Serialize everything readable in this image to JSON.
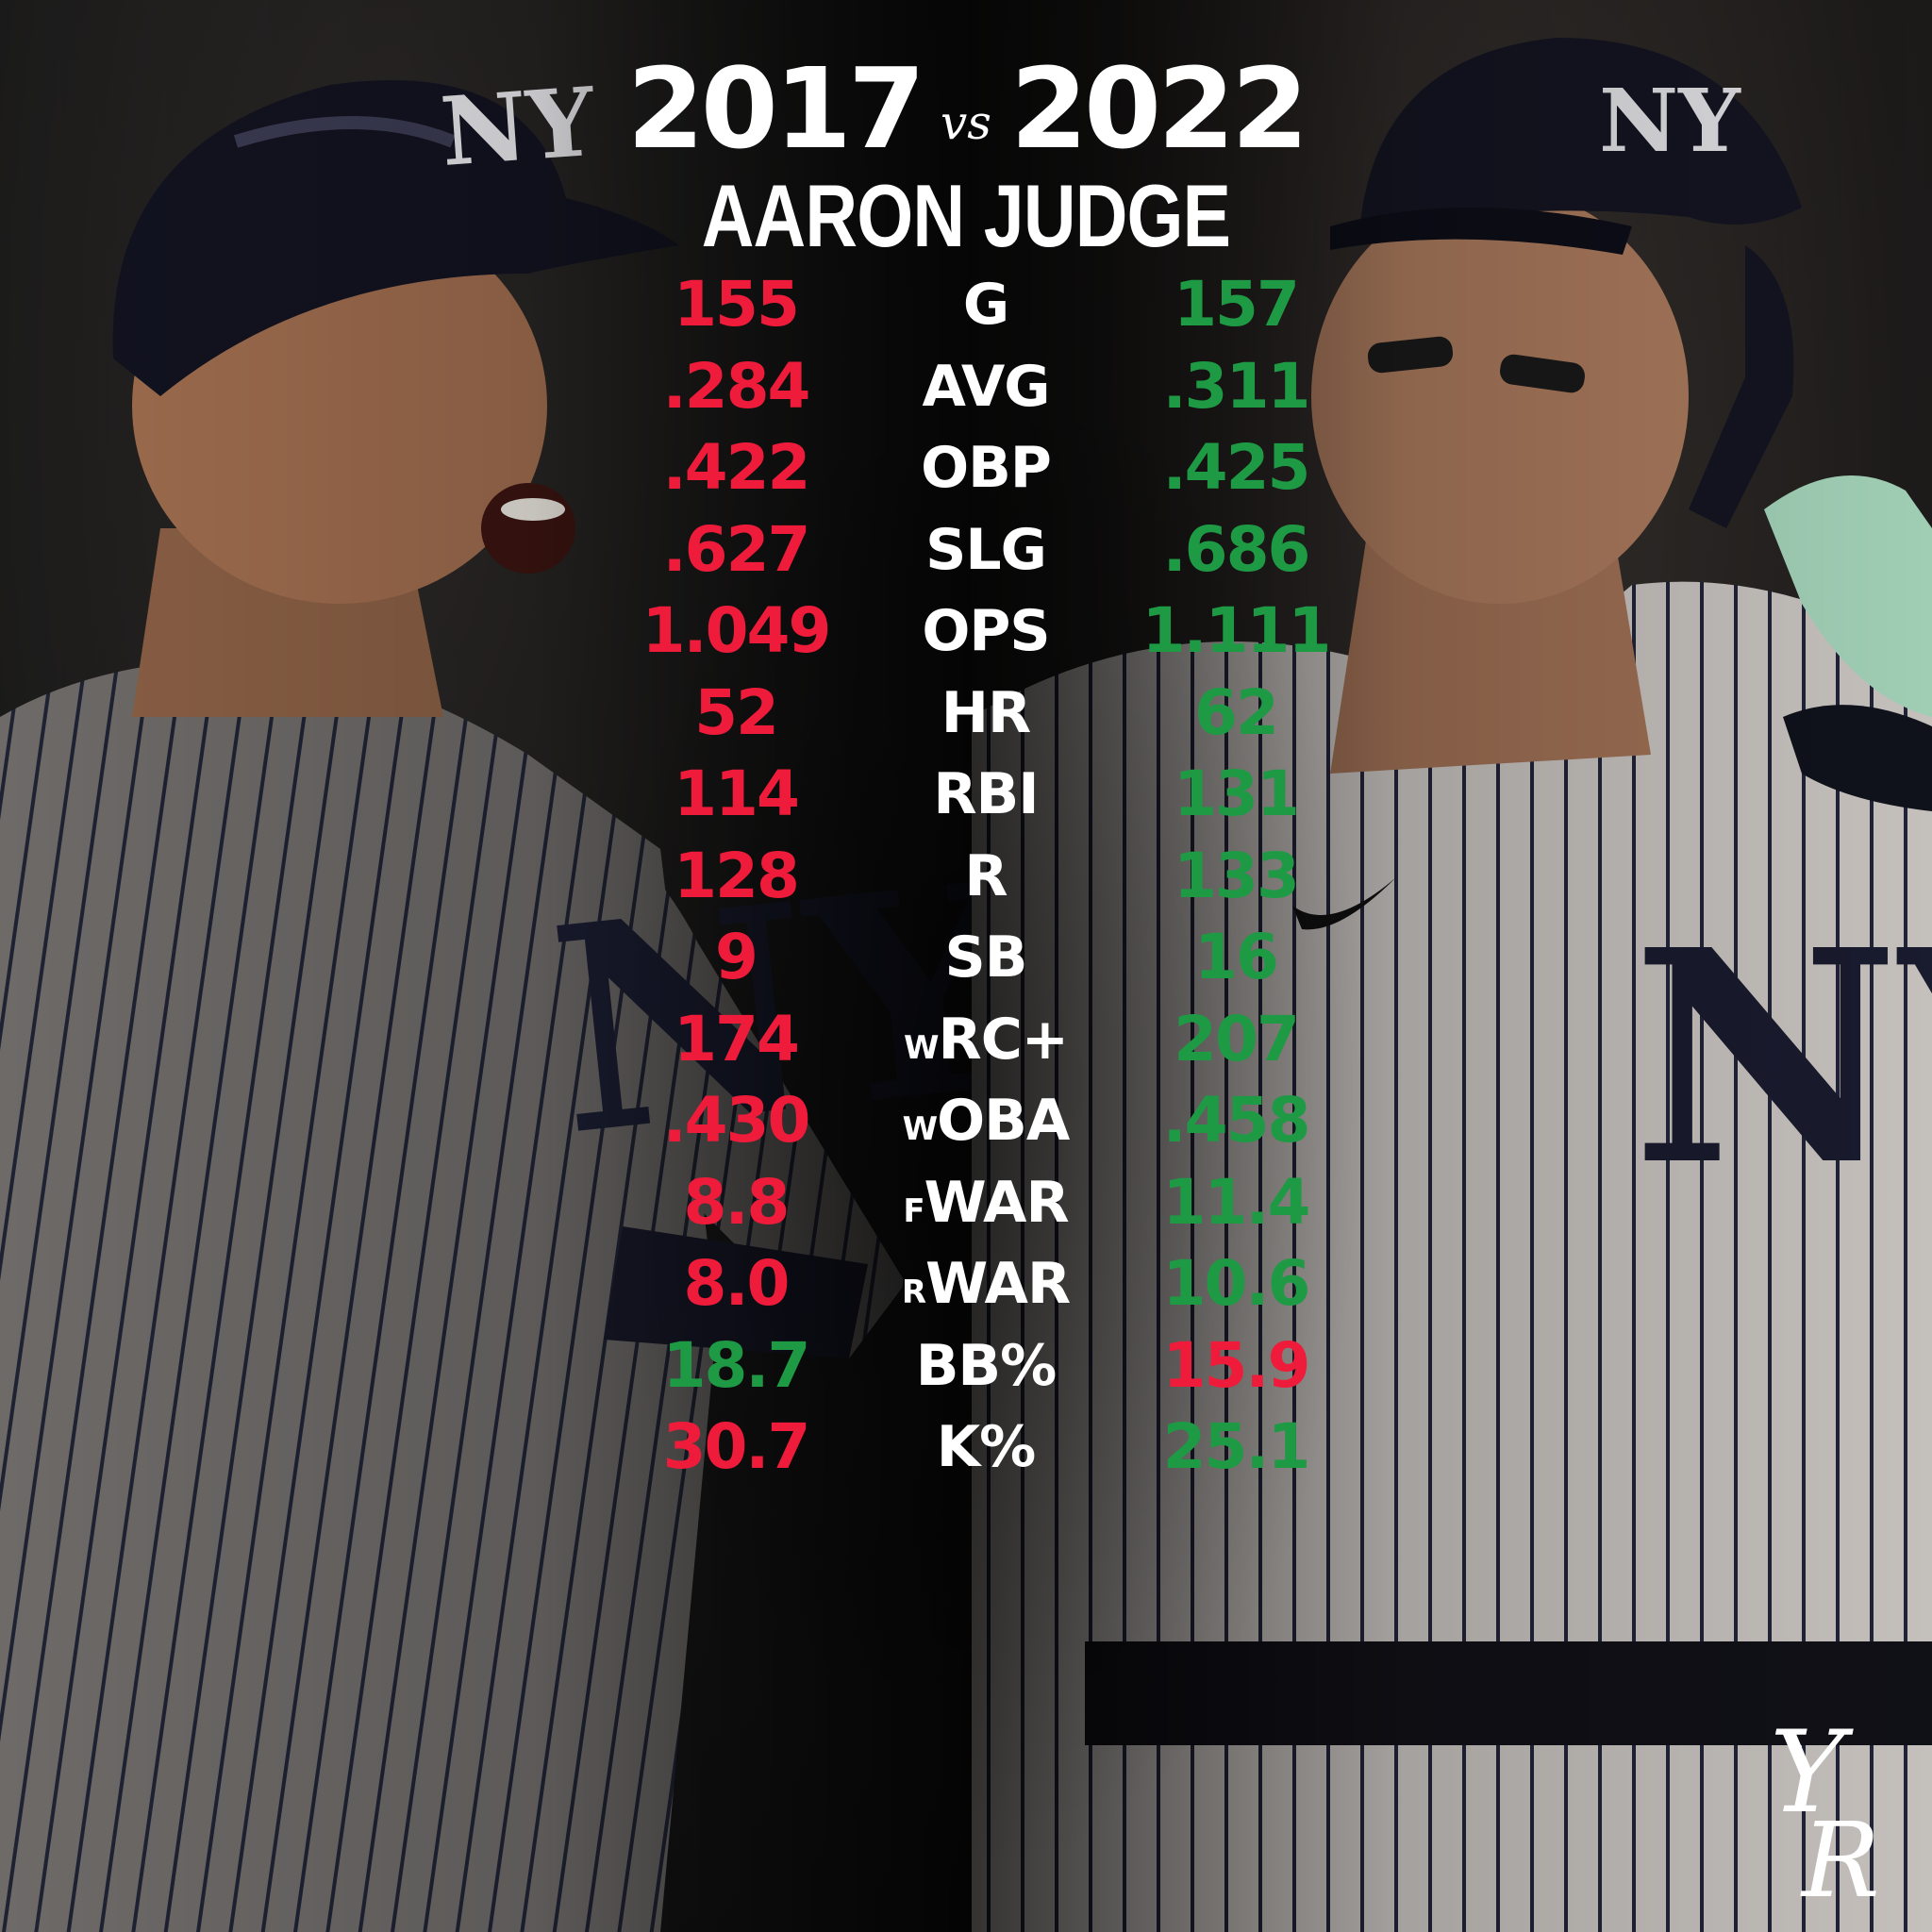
{
  "header": {
    "year_left": "2017",
    "vs": "vs",
    "year_right": "2022",
    "player_name": "AARON JUDGE"
  },
  "colors": {
    "better": "#1e9a45",
    "worse": "#ee1c3a",
    "label": "#ffffff"
  },
  "stats": [
    {
      "left": "155",
      "prefix": "",
      "label": "G",
      "right": "157",
      "left_color": "worse",
      "right_color": "better"
    },
    {
      "left": ".284",
      "prefix": "",
      "label": "AVG",
      "right": ".311",
      "left_color": "worse",
      "right_color": "better"
    },
    {
      "left": ".422",
      "prefix": "",
      "label": "OBP",
      "right": ".425",
      "left_color": "worse",
      "right_color": "better"
    },
    {
      "left": ".627",
      "prefix": "",
      "label": "SLG",
      "right": ".686",
      "left_color": "worse",
      "right_color": "better"
    },
    {
      "left": "1.049",
      "prefix": "",
      "label": "OPS",
      "right": "1.111",
      "left_color": "worse",
      "right_color": "better"
    },
    {
      "left": "52",
      "prefix": "",
      "label": "HR",
      "right": "62",
      "left_color": "worse",
      "right_color": "better"
    },
    {
      "left": "114",
      "prefix": "",
      "label": "RBI",
      "right": "131",
      "left_color": "worse",
      "right_color": "better"
    },
    {
      "left": "128",
      "prefix": "",
      "label": "R",
      "right": "133",
      "left_color": "worse",
      "right_color": "better"
    },
    {
      "left": "9",
      "prefix": "",
      "label": "SB",
      "right": "16",
      "left_color": "worse",
      "right_color": "better"
    },
    {
      "left": "174",
      "prefix": "W",
      "label": "RC+",
      "right": "207",
      "left_color": "worse",
      "right_color": "better"
    },
    {
      "left": ".430",
      "prefix": "W",
      "label": "OBA",
      "right": ".458",
      "left_color": "worse",
      "right_color": "better"
    },
    {
      "left": "8.8",
      "prefix": "F",
      "label": "WAR",
      "right": "11.4",
      "left_color": "worse",
      "right_color": "better"
    },
    {
      "left": "8.0",
      "prefix": "R",
      "label": "WAR",
      "right": "10.6",
      "left_color": "worse",
      "right_color": "better"
    },
    {
      "left": "18.7",
      "prefix": "",
      "label": "BB%",
      "right": "15.9",
      "left_color": "better",
      "right_color": "worse"
    },
    {
      "left": "30.7",
      "prefix": "",
      "label": "K%",
      "right": "25.1",
      "left_color": "worse",
      "right_color": "better"
    }
  ],
  "logo": {
    "text": "YR"
  }
}
